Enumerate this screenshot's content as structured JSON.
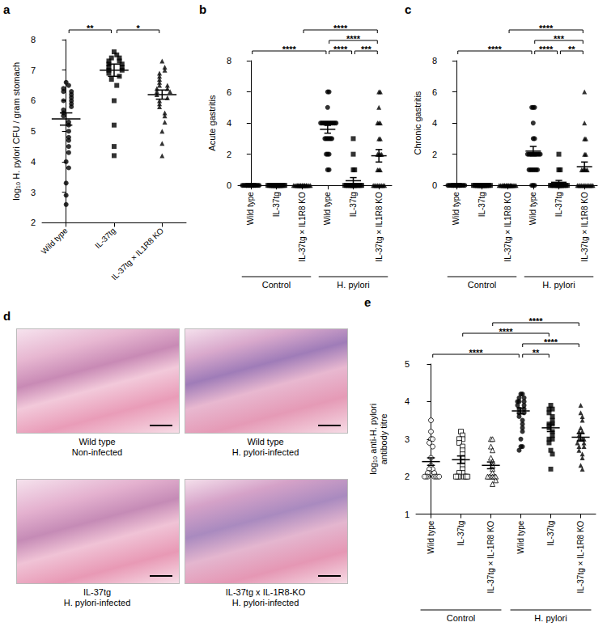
{
  "chart_data": [
    {
      "panel": "a",
      "type": "scatter",
      "ylabel": "log₁₀ H. pylori CFU / gram stomach",
      "categories": [
        "Wild type",
        "IL-37tg",
        "IL-37tg × IL1R8 KO"
      ],
      "markers": [
        "circle",
        "rect",
        "triangle"
      ],
      "color": "#000000",
      "values": [
        [
          6.6,
          6.5,
          6.4,
          6.3,
          6.3,
          6.2,
          6.1,
          6.0,
          6.0,
          5.9,
          5.8,
          5.7,
          5.6,
          5.5,
          5.3,
          5.2,
          5.0,
          4.8,
          4.7,
          4.5,
          4.3,
          4.0,
          3.8,
          3.3,
          2.9,
          2.6
        ],
        [
          7.6,
          7.5,
          7.4,
          7.4,
          7.3,
          7.3,
          7.2,
          7.2,
          7.1,
          7.1,
          7.0,
          7.0,
          6.9,
          6.8,
          6.7,
          6.5,
          6.0,
          5.2,
          4.5,
          4.2
        ],
        [
          7.3,
          7.1,
          7.0,
          6.9,
          6.8,
          6.7,
          6.6,
          6.5,
          6.5,
          6.4,
          6.4,
          6.3,
          6.3,
          6.2,
          6.1,
          6.0,
          5.9,
          5.8,
          5.6,
          5.5,
          5.3,
          5.0,
          4.6,
          4.2
        ]
      ],
      "means": [
        5.4,
        7.0,
        6.2
      ],
      "sems": [
        0.2,
        0.2,
        0.15
      ],
      "ylim": [
        2,
        8
      ],
      "yticks": [
        2,
        3,
        4,
        5,
        6,
        7,
        8
      ],
      "grid": false,
      "comparisons": [
        {
          "between": [
            0,
            1
          ],
          "label": "**"
        },
        {
          "between": [
            1,
            2
          ],
          "label": "*"
        }
      ]
    },
    {
      "panel": "b",
      "type": "scatter",
      "ylabel": "Acute gastritis",
      "categories": [
        "Wild type",
        "IL-37tg",
        "IL-37tg × IL1R8 KO",
        "Wild type",
        "IL-37tg",
        "IL-37tg × IL1R8 KO"
      ],
      "group_labels": [
        {
          "label": "Control",
          "between": [
            0,
            2
          ]
        },
        {
          "label": "H. pylori",
          "between": [
            3,
            5
          ]
        }
      ],
      "markers": [
        "circle",
        "rect",
        "triangle",
        "circle",
        "rect",
        "triangle"
      ],
      "color": "#000000",
      "values": [
        [
          0,
          0,
          0,
          0,
          0,
          0,
          0,
          0,
          0,
          0,
          0,
          0,
          0,
          0,
          0,
          0,
          0,
          0,
          0,
          0
        ],
        [
          0,
          0,
          0,
          0,
          0,
          0,
          0,
          0,
          0,
          0,
          0,
          0,
          0,
          0,
          0,
          0,
          0,
          0,
          0,
          0
        ],
        [
          0,
          0,
          0,
          0,
          0,
          0,
          0,
          0,
          0,
          0,
          0,
          0,
          0,
          0,
          0,
          0,
          0,
          0,
          0,
          0
        ],
        [
          6,
          6,
          5,
          4,
          4,
          4,
          4,
          4,
          4,
          4,
          4,
          4,
          4,
          4,
          4,
          3,
          3,
          3,
          3,
          3,
          3,
          2,
          2,
          2,
          1,
          1
        ],
        [
          3,
          2,
          1,
          1,
          0,
          0,
          0,
          0,
          0,
          0,
          0,
          0,
          0,
          0,
          0,
          0,
          0,
          0,
          0,
          0
        ],
        [
          6,
          6,
          5,
          4,
          4,
          4,
          3,
          3,
          2,
          2,
          2,
          2,
          1,
          1,
          1,
          0,
          0,
          0,
          0,
          0,
          0,
          0,
          0,
          0
        ]
      ],
      "means": [
        0,
        0,
        0,
        3.6,
        0.3,
        1.9
      ],
      "sems": [
        0,
        0,
        0,
        0.25,
        0.2,
        0.4
      ],
      "ylim": [
        0,
        8
      ],
      "yticks": [
        0,
        2,
        4,
        6,
        8
      ],
      "grid": false,
      "comparisons": [
        {
          "between": [
            0,
            3
          ],
          "label": "****"
        },
        {
          "between": [
            3,
            4
          ],
          "label": "****"
        },
        {
          "between": [
            4,
            5
          ],
          "label": "***"
        },
        {
          "between": [
            3,
            5
          ],
          "label": "****"
        },
        {
          "between": [
            2,
            5
          ],
          "label": "****"
        }
      ]
    },
    {
      "panel": "c",
      "type": "scatter",
      "ylabel": "Chronic gastritis",
      "categories": [
        "Wild type",
        "IL-37tg",
        "IL-37tg × IL1R8 KO",
        "Wild type",
        "IL-37tg",
        "IL-37tg × IL1R8 KO"
      ],
      "group_labels": [
        {
          "label": "Control",
          "between": [
            0,
            2
          ]
        },
        {
          "label": "H. pylori",
          "between": [
            3,
            5
          ]
        }
      ],
      "markers": [
        "circle",
        "rect",
        "triangle",
        "circle",
        "rect",
        "triangle"
      ],
      "color": "#000000",
      "values": [
        [
          0,
          0,
          0,
          0,
          0,
          0,
          0,
          0,
          0,
          0,
          0,
          0,
          0,
          0,
          0,
          0,
          0,
          0,
          0,
          0
        ],
        [
          0,
          0,
          0,
          0,
          0,
          0,
          0,
          0,
          0,
          0,
          0,
          0,
          0,
          0,
          0,
          0,
          0,
          0,
          0,
          0
        ],
        [
          0,
          0,
          0,
          0,
          0,
          0,
          0,
          0,
          0,
          0,
          0,
          0,
          0,
          0,
          0,
          0,
          0,
          0,
          0,
          0
        ],
        [
          5,
          5,
          5,
          4,
          3,
          3,
          2,
          2,
          2,
          2,
          2,
          2,
          2,
          2,
          2,
          2,
          1,
          1,
          1,
          1,
          1,
          1,
          1,
          0,
          0,
          0
        ],
        [
          2,
          1,
          1,
          0,
          0,
          0,
          0,
          0,
          0,
          0,
          0,
          0,
          0,
          0,
          0,
          0,
          0,
          0,
          0,
          0
        ],
        [
          6,
          4,
          3,
          3,
          2,
          2,
          1,
          1,
          1,
          1,
          1,
          0,
          0,
          0,
          0,
          0,
          0,
          0,
          0,
          0,
          0,
          0,
          0
        ]
      ],
      "means": [
        0,
        0,
        0,
        2.2,
        0.2,
        1.2
      ],
      "sems": [
        0,
        0,
        0,
        0.3,
        0.12,
        0.3
      ],
      "ylim": [
        0,
        8
      ],
      "yticks": [
        0,
        2,
        4,
        6,
        8
      ],
      "grid": false,
      "comparisons": [
        {
          "between": [
            0,
            3
          ],
          "label": "****"
        },
        {
          "between": [
            3,
            4
          ],
          "label": "****"
        },
        {
          "between": [
            4,
            5
          ],
          "label": "**"
        },
        {
          "between": [
            3,
            5
          ],
          "label": "***"
        },
        {
          "between": [
            2,
            5
          ],
          "label": "****"
        }
      ]
    },
    {
      "panel": "e",
      "type": "scatter",
      "ylabel": "log₁₀ anti-H. pylori antibody titre",
      "categories": [
        "Wild type",
        "IL-37tg",
        "IL-37tg × IL-1R8 KO",
        "Wild type",
        "IL-37tg",
        "IL-37tg × IL-1R8 KO"
      ],
      "group_labels": [
        {
          "label": "Control",
          "between": [
            0,
            2
          ]
        },
        {
          "label": "H. pylori",
          "between": [
            3,
            5
          ]
        }
      ],
      "markers": [
        "open_circle",
        "open_rect",
        "open_triangle",
        "circle",
        "rect",
        "triangle"
      ],
      "color": "#000000",
      "values": [
        [
          3.5,
          3.2,
          3.0,
          3.0,
          2.9,
          2.8,
          2.5,
          2.3,
          2.2,
          2.2,
          2.1,
          2.1,
          2.1,
          2.0,
          2.0,
          2.0,
          2.0,
          2.0,
          2.0,
          2.0
        ],
        [
          3.2,
          3.1,
          3.0,
          3.0,
          2.9,
          2.8,
          2.7,
          2.6,
          2.5,
          2.4,
          2.3,
          2.2,
          2.1,
          2.1,
          2.0,
          2.0,
          2.0,
          2.0,
          2.0,
          2.0
        ],
        [
          3.0,
          3.0,
          2.8,
          2.7,
          2.5,
          2.4,
          2.3,
          2.2,
          2.1,
          2.0,
          2.0,
          2.0,
          2.0,
          2.0,
          1.9,
          1.8
        ],
        [
          4.2,
          4.2,
          4.1,
          4.1,
          4.0,
          4.0,
          4.0,
          3.9,
          3.9,
          3.8,
          3.8,
          3.7,
          3.7,
          3.6,
          3.5,
          3.4,
          3.3,
          3.2,
          3.0,
          2.8,
          2.8,
          2.7
        ],
        [
          3.9,
          3.8,
          3.8,
          3.7,
          3.6,
          3.5,
          3.4,
          3.4,
          3.3,
          3.2,
          3.1,
          3.0,
          3.0,
          2.9,
          2.7,
          2.6,
          2.2
        ],
        [
          3.9,
          3.7,
          3.6,
          3.5,
          3.3,
          3.2,
          3.2,
          3.1,
          3.0,
          3.0,
          3.0,
          2.9,
          2.9,
          2.8,
          2.8,
          2.7,
          2.6,
          2.5,
          2.3,
          2.2
        ]
      ],
      "means": [
        2.4,
        2.45,
        2.3,
        3.75,
        3.3,
        3.05
      ],
      "sems": [
        0.1,
        0.1,
        0.09,
        0.08,
        0.1,
        0.1
      ],
      "ylim": [
        1,
        5
      ],
      "yticks": [
        1,
        2,
        3,
        4,
        5
      ],
      "grid": false,
      "comparisons": [
        {
          "between": [
            3,
            4
          ],
          "label": "**"
        },
        {
          "between": [
            3,
            5
          ],
          "label": "****"
        },
        {
          "between": [
            0,
            3
          ],
          "label": "****"
        },
        {
          "between": [
            1,
            4
          ],
          "label": "****"
        },
        {
          "between": [
            2,
            5
          ],
          "label": "****"
        }
      ]
    }
  ],
  "figure_d": {
    "panel": "d",
    "images": [
      {
        "caption": [
          "Wild type",
          "Non-infected"
        ]
      },
      {
        "caption": [
          "Wild type",
          "H. pylori-infected"
        ]
      },
      {
        "caption": [
          "IL-37tg",
          "H. pylori-infected"
        ]
      },
      {
        "caption": [
          "IL-37tg x IL-1R8-KO",
          "H. pylori-infected"
        ]
      }
    ]
  }
}
